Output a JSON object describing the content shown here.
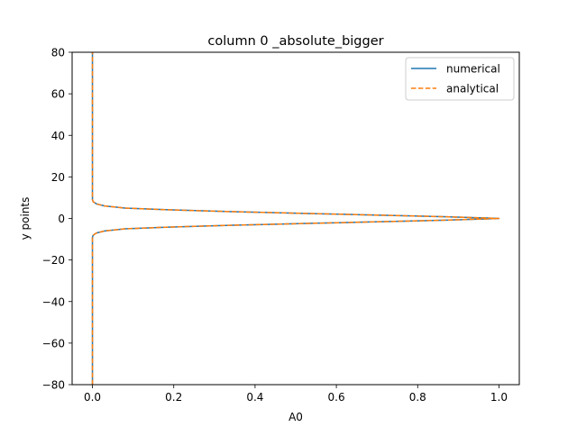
{
  "chart_data": {
    "type": "line",
    "title": "column 0 _absolute_bigger",
    "xlabel": "A0",
    "ylabel": "y points",
    "xlim": [
      -0.05,
      1.05
    ],
    "ylim": [
      -80,
      80
    ],
    "xticks": [
      0.0,
      0.2,
      0.4,
      0.6,
      0.8,
      1.0
    ],
    "xtick_labels": [
      "0.0",
      "0.2",
      "0.4",
      "0.6",
      "0.8",
      "1.0"
    ],
    "yticks": [
      -80,
      -60,
      -40,
      -20,
      0,
      20,
      40,
      60,
      80
    ],
    "ytick_labels": [
      "−80",
      "−60",
      "−40",
      "−20",
      "0",
      "20",
      "40",
      "60",
      "80"
    ],
    "grid": false,
    "legend_position": "upper right",
    "series": [
      {
        "name": "numerical",
        "color": "#1f77b4",
        "style": "solid",
        "x": [
          0.0,
          0.0,
          0.0,
          0.0,
          0.0,
          0.0,
          0.002,
          0.01,
          0.03,
          0.08,
          0.18,
          0.3,
          0.42,
          0.55,
          0.67,
          0.78,
          0.87,
          0.93,
          0.97,
          1.0,
          0.97,
          0.93,
          0.87,
          0.78,
          0.67,
          0.55,
          0.42,
          0.3,
          0.18,
          0.08,
          0.03,
          0.01,
          0.002,
          0.0,
          0.0,
          0.0,
          0.0,
          0.0,
          0.0
        ],
        "y": [
          -80,
          -60,
          -40,
          -20,
          -10,
          -9,
          -8,
          -7,
          -6,
          -5,
          -4.2,
          -3.5,
          -2.9,
          -2.3,
          -1.75,
          -1.25,
          -0.8,
          -0.45,
          -0.2,
          0,
          0.2,
          0.45,
          0.8,
          1.25,
          1.75,
          2.3,
          2.9,
          3.5,
          4.2,
          5,
          6,
          7,
          8,
          9,
          10,
          20,
          40,
          60,
          80
        ]
      },
      {
        "name": "analytical",
        "color": "#ff7f0e",
        "style": "dashed",
        "x": [
          0.0,
          0.0,
          0.0,
          0.0,
          0.0,
          0.0,
          0.002,
          0.01,
          0.03,
          0.08,
          0.18,
          0.3,
          0.42,
          0.55,
          0.67,
          0.78,
          0.87,
          0.93,
          0.97,
          1.0,
          0.97,
          0.93,
          0.87,
          0.78,
          0.67,
          0.55,
          0.42,
          0.3,
          0.18,
          0.08,
          0.03,
          0.01,
          0.002,
          0.0,
          0.0,
          0.0,
          0.0,
          0.0,
          0.0
        ],
        "y": [
          -80,
          -60,
          -40,
          -20,
          -10,
          -9,
          -8,
          -7,
          -6,
          -5,
          -4.2,
          -3.5,
          -2.9,
          -2.3,
          -1.75,
          -1.25,
          -0.8,
          -0.45,
          -0.2,
          0,
          0.2,
          0.45,
          0.8,
          1.25,
          1.75,
          2.3,
          2.9,
          3.5,
          4.2,
          5,
          6,
          7,
          8,
          9,
          10,
          20,
          40,
          60,
          80
        ]
      }
    ]
  }
}
